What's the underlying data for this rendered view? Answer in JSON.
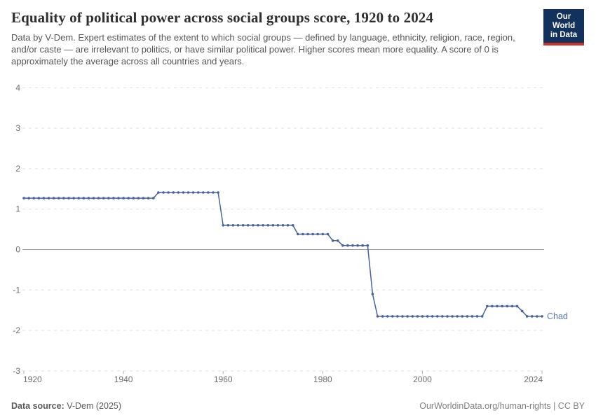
{
  "header": {
    "title": "Equality of political power across social groups score, 1920 to 2024",
    "subtitle": "Data by V-Dem. Expert estimates of the extent to which social groups — defined by language, ethnicity, religion, race, region, and/or caste — are irrelevant to politics, or have similar political power. Higher scores mean more equality. A score of 0 is approximately the average across all countries and years.",
    "logo": {
      "line1": "Our World",
      "line2": "in Data"
    }
  },
  "chart_data": {
    "type": "line",
    "title": "Equality of political power across social groups score, 1920 to 2024",
    "entity_label": "Chad",
    "xlim": [
      1920,
      2024
    ],
    "ylim": [
      -3,
      4
    ],
    "x_ticks": [
      1920,
      1940,
      1960,
      1980,
      2000,
      2024
    ],
    "y_ticks": [
      4,
      3,
      2,
      1,
      0,
      -1,
      -2,
      -3
    ],
    "grid": "horizontal-dashed, zero-line-solid",
    "legend_position": "end-of-line",
    "series": [
      {
        "name": "Chad",
        "segments_year_start_end_value": [
          [
            1920,
            1946,
            1.27
          ],
          [
            1947,
            1959,
            1.41
          ],
          [
            1960,
            1974,
            0.6
          ],
          [
            1975,
            1981,
            0.38
          ],
          [
            1982,
            1983,
            0.22
          ],
          [
            1984,
            1989,
            0.1
          ],
          [
            1990,
            1990,
            -1.1
          ],
          [
            1991,
            2012,
            -1.65
          ],
          [
            2013,
            2019,
            -1.4
          ],
          [
            2020,
            2020,
            -1.52
          ],
          [
            2021,
            2024,
            -1.65
          ]
        ]
      }
    ]
  },
  "footer": {
    "source_label": "Data source:",
    "source_value": "V-Dem (2025)",
    "credit": "OurWorldinData.org/human-rights | CC BY"
  },
  "colors": {
    "line": "#46639f",
    "entity_label": "#587ab4",
    "axis_text": "#6e6e6e",
    "grid": "#e0e0e0",
    "zero_line": "#9a9a9a",
    "tick_mark": "#b3b3b3",
    "logo_bg": "#12315c",
    "logo_stripe": "#c5332b"
  }
}
